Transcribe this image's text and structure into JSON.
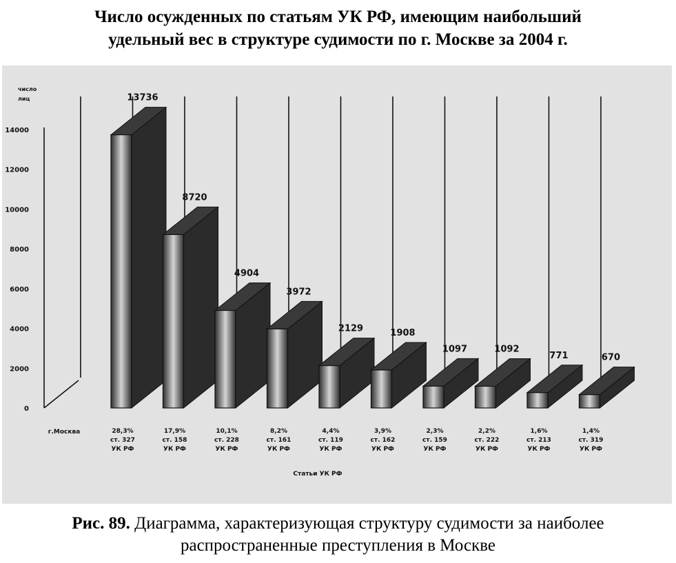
{
  "title": {
    "line1": "Число осужденных по статьям УК РФ, имеющим наибольший",
    "line2": "удельный вес в структуре судимости по г. Москве за 2004 г."
  },
  "caption": {
    "fig": "Рис. 89.",
    "line1": " Диаграмма, характеризующая структуру судимости за наиболее",
    "line2": "распространенные преступления в Москве"
  },
  "chart_data": {
    "type": "bar",
    "title": "Число осужденных по статьям УК РФ, имеющим наибольший удельный вес в структуре судимости по г. Москве за 2004 г.",
    "ylabel": [
      "число",
      "лиц"
    ],
    "xlabel": "Статьи УК РФ",
    "series_label": "г.Москва",
    "ylim": [
      0,
      14000
    ],
    "yticks": [
      0,
      2000,
      4000,
      6000,
      8000,
      10000,
      12000,
      14000
    ],
    "grid": false,
    "categories": [
      {
        "pct": "28,3%",
        "art": "ст. 327",
        "code": "УК РФ"
      },
      {
        "pct": "17,9%",
        "art": "ст. 158",
        "code": "УК РФ"
      },
      {
        "pct": "10,1%",
        "art": "ст. 228",
        "code": "УК РФ"
      },
      {
        "pct": "8,2%",
        "art": "ст. 161",
        "code": "УК РФ"
      },
      {
        "pct": "4,4%",
        "art": "ст. 119",
        "code": "УК РФ"
      },
      {
        "pct": "3,9%",
        "art": "ст. 162",
        "code": "УК РФ"
      },
      {
        "pct": "2,3%",
        "art": "ст. 159",
        "code": "УК РФ"
      },
      {
        "pct": "2,2%",
        "art": "ст. 222",
        "code": "УК РФ"
      },
      {
        "pct": "1,6%",
        "art": "ст. 213",
        "code": "УК РФ"
      },
      {
        "pct": "1,4%",
        "art": "ст. 319",
        "code": "УК РФ"
      }
    ],
    "values": [
      13736,
      8720,
      4904,
      3972,
      2129,
      1908,
      1097,
      1092,
      771,
      670
    ]
  }
}
